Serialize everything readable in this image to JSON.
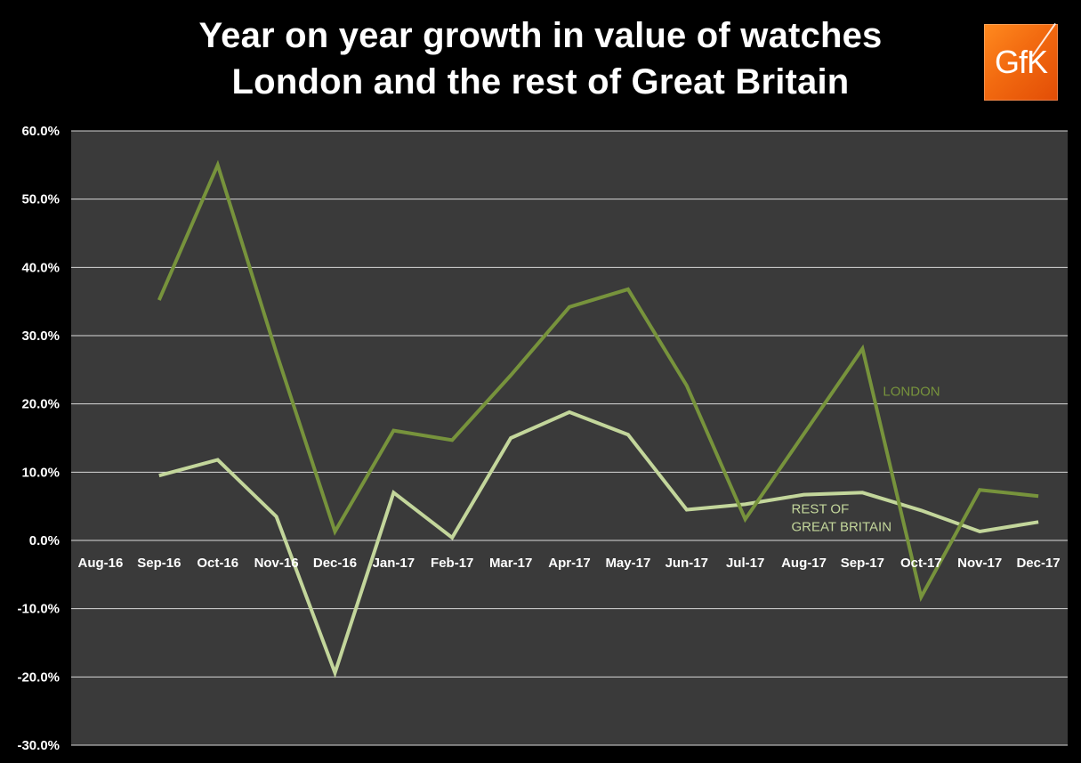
{
  "title": {
    "line1": "Year on year growth in value of watches",
    "line2": "London and the rest of Great Britain"
  },
  "logo": {
    "text": "GfK",
    "color": "#f26a10"
  },
  "colors": {
    "background": "#000000",
    "plot_area": "#3a3a3a",
    "gridline": "#d9d9d9",
    "london": "#77933c",
    "rest_of_gb": "#c3d69b"
  },
  "chart_data": {
    "type": "line",
    "title": "Year on year growth in value of watches London and the rest of Great Britain",
    "categories": [
      "Aug-16",
      "Sep-16",
      "Oct-16",
      "Nov-16",
      "Dec-16",
      "Jan-17",
      "Feb-17",
      "Mar-17",
      "Apr-17",
      "May-17",
      "Jun-17",
      "Jul-17",
      "Aug-17",
      "Sep-17",
      "Oct-17",
      "Nov-17",
      "Dec-17"
    ],
    "ylim": [
      -30,
      60
    ],
    "yticks": [
      60,
      50,
      40,
      30,
      20,
      10,
      0,
      -10,
      -20,
      -30
    ],
    "ytick_labels": [
      "60.0%",
      "50.0%",
      "40.0%",
      "30.0%",
      "20.0%",
      "10.0%",
      "0.0%",
      "-10.0%",
      "-20.0%",
      "-30.0%"
    ],
    "y_unit": "%",
    "grid": true,
    "legend": "inline labels",
    "series": [
      {
        "name": "LONDON",
        "label_lines": [
          "LONDON"
        ],
        "color": "#77933c",
        "values": [
          null,
          35.2,
          55.0,
          27.5,
          1.3,
          16.1,
          14.7,
          24.2,
          34.2,
          36.8,
          22.7,
          3.1,
          15.6,
          28.1,
          -8.3,
          7.4,
          6.5
        ]
      },
      {
        "name": "REST OF GREAT BRITAIN",
        "label_lines": [
          "REST OF",
          "GREAT BRITAIN"
        ],
        "color": "#c3d69b",
        "values": [
          null,
          9.5,
          11.8,
          3.5,
          -19.4,
          7.0,
          0.4,
          15.0,
          18.8,
          15.5,
          4.5,
          5.3,
          6.7,
          7.0,
          4.4,
          1.3,
          2.7
        ]
      }
    ]
  }
}
